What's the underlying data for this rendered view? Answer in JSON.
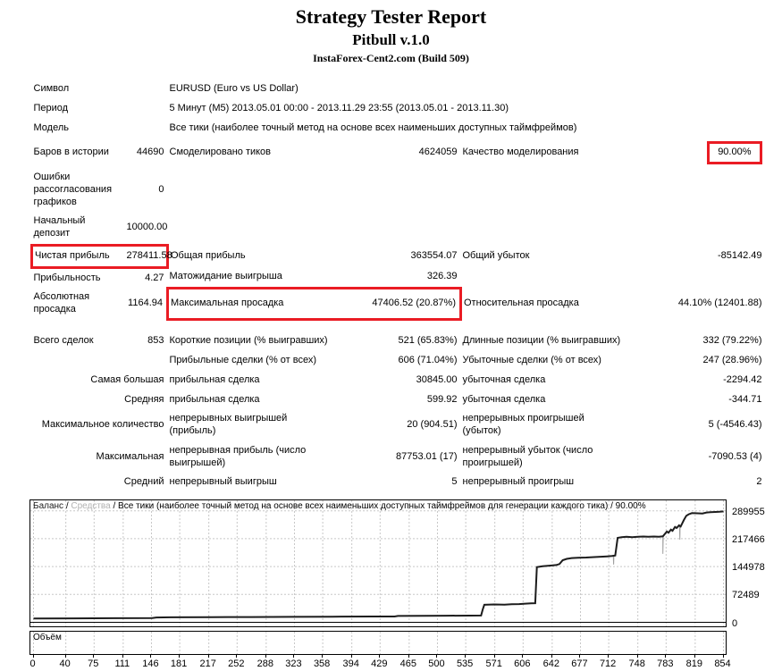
{
  "header": {
    "title": "Strategy Tester Report",
    "subtitle": "Pitbull v.1.0",
    "build": "InstaForex-Cent2.com (Build 509)"
  },
  "colors": {
    "red": "#ea1c24",
    "balance_line": "#1c1c1c",
    "equity_line": "#a0a0a0",
    "grid": "#c8c8c8",
    "legend_equity": "#b2b2b2"
  },
  "report": {
    "rows": [
      {
        "cells": [
          {
            "t": "Символ"
          },
          {
            "t": ""
          },
          {
            "t": "EURUSD (Euro vs US Dollar)",
            "s": 4
          }
        ]
      },
      {
        "cells": [
          {
            "t": "Период"
          },
          {
            "t": ""
          },
          {
            "t": "5 Минут (M5) 2013.05.01 00:00 - 2013.11.29 23:55 (2013.05.01 - 2013.11.30)",
            "s": 4
          }
        ]
      },
      {
        "cells": [
          {
            "t": "Модель"
          },
          {
            "t": ""
          },
          {
            "t": "Все тики (наиболее точный метод на основе всех наименьших доступных таймфреймов)",
            "s": 4
          }
        ]
      },
      {
        "cells": [
          {
            "t": "Баров в истории"
          },
          {
            "t": "44690",
            "a": "r"
          },
          {
            "t": "Смоделировано тиков"
          },
          {
            "t": "4624059",
            "a": "r"
          },
          {
            "t": "Качество моделирования"
          },
          {
            "t": "90.00%",
            "a": "r",
            "b": "f"
          }
        ]
      },
      {
        "cells": [
          {
            "t": "Ошибки рассогласования графиков"
          },
          {
            "t": "0",
            "a": "r"
          },
          {
            "t": "",
            "s": 4
          }
        ]
      },
      {
        "cells": [
          {
            "t": "Начальный депозит"
          },
          {
            "t": "10000.00",
            "a": "r"
          },
          {
            "t": "",
            "s": 4
          }
        ]
      },
      {
        "cells": [
          {
            "t": "Чистая прибыль",
            "b": "l"
          },
          {
            "t": "278411.58",
            "a": "r",
            "b": "r"
          },
          {
            "t": "Общая прибыль"
          },
          {
            "t": "363554.07",
            "a": "r"
          },
          {
            "t": "Общий убыток"
          },
          {
            "t": "-85142.49",
            "a": "r"
          }
        ]
      },
      {
        "cells": [
          {
            "t": "Прибыльность"
          },
          {
            "t": "4.27",
            "a": "r"
          },
          {
            "t": "Матожидание выигрыша"
          },
          {
            "t": "326.39",
            "a": "r"
          },
          {
            "t": ""
          },
          {
            "t": ""
          }
        ]
      },
      {
        "cells": [
          {
            "t": "Абсолютная просадка"
          },
          {
            "t": "1164.94",
            "a": "r"
          },
          {
            "t": "Максимальная просадка",
            "b": "l"
          },
          {
            "t": "47406.52 (20.87%)",
            "a": "r",
            "b": "r"
          },
          {
            "t": "Относительная просадка"
          },
          {
            "t": "44.10% (12401.88)",
            "a": "r"
          }
        ]
      },
      {
        "gap": true,
        "cells": [
          {
            "t": "Всего сделок"
          },
          {
            "t": "853",
            "a": "r"
          },
          {
            "t": "Короткие позиции (% выигравших)"
          },
          {
            "t": "521 (65.83%)",
            "a": "r"
          },
          {
            "t": "Длинные позиции (% выигравших)"
          },
          {
            "t": "332 (79.22%)",
            "a": "r"
          }
        ]
      },
      {
        "cells": [
          {
            "t": ""
          },
          {
            "t": ""
          },
          {
            "t": "Прибыльные сделки (% от всех)"
          },
          {
            "t": "606 (71.04%)",
            "a": "r"
          },
          {
            "t": "Убыточные сделки (% от всех)"
          },
          {
            "t": "247 (28.96%)",
            "a": "r"
          }
        ]
      },
      {
        "cells": [
          {
            "t": "Самая большая",
            "s": 2,
            "a": "r"
          },
          {
            "t": "прибыльная сделка"
          },
          {
            "t": "30845.00",
            "a": "r"
          },
          {
            "t": "убыточная сделка"
          },
          {
            "t": "-2294.42",
            "a": "r"
          }
        ]
      },
      {
        "cells": [
          {
            "t": "Средняя",
            "s": 2,
            "a": "r"
          },
          {
            "t": "прибыльная сделка"
          },
          {
            "t": "599.92",
            "a": "r"
          },
          {
            "t": "убыточная сделка"
          },
          {
            "t": "-344.71",
            "a": "r"
          }
        ]
      },
      {
        "cells": [
          {
            "t": "Максимальное количество",
            "s": 2,
            "a": "r"
          },
          {
            "t": "непрерывных выигрышей (прибыль)"
          },
          {
            "t": "20 (904.51)",
            "a": "r"
          },
          {
            "t": "непрерывных проигрышей (убыток)"
          },
          {
            "t": "5 (-4546.43)",
            "a": "r"
          }
        ]
      },
      {
        "cells": [
          {
            "t": "Максимальная",
            "s": 2,
            "a": "r"
          },
          {
            "t": "непрерывная прибыль (число выигрышей)"
          },
          {
            "t": "87753.01 (17)",
            "a": "r"
          },
          {
            "t": "непрерывный убыток (число проигрышей)"
          },
          {
            "t": "-7090.53 (4)",
            "a": "r"
          }
        ]
      },
      {
        "cells": [
          {
            "t": "Средний",
            "s": 2,
            "a": "r"
          },
          {
            "t": "непрерывный выигрыш"
          },
          {
            "t": "5",
            "a": "r"
          },
          {
            "t": "непрерывный проигрыш"
          },
          {
            "t": "2",
            "a": "r"
          }
        ]
      }
    ]
  },
  "chart_data": {
    "type": "line",
    "legend": [
      {
        "text": "Баланс",
        "color": "#1c1c1c"
      },
      {
        "text": "Средства",
        "color": "#b2b2b2"
      },
      {
        "text": "Все тики (наиболее точный метод на основе всех наименьших доступных таймфреймов для генерации каждого тика)",
        "color": "#000000"
      },
      {
        "text": "90.00%",
        "color": "#000000"
      }
    ],
    "volume_label": "Объём",
    "y_ticks": [
      289955,
      217466,
      144978,
      72489,
      0
    ],
    "x_ticks": [
      0,
      40,
      75,
      111,
      146,
      181,
      217,
      252,
      288,
      323,
      358,
      394,
      429,
      465,
      500,
      535,
      571,
      606,
      642,
      677,
      712,
      748,
      783,
      819,
      854
    ],
    "x_range": [
      0,
      854
    ],
    "y_range": [
      0,
      313000
    ],
    "grid": true,
    "legend_position": "top-left",
    "series": [
      {
        "name": "Баланс",
        "points": [
          [
            0,
            10000
          ],
          [
            50,
            10250
          ],
          [
            100,
            10600
          ],
          [
            147,
            10900
          ],
          [
            152,
            12600
          ],
          [
            170,
            13000
          ],
          [
            220,
            13400
          ],
          [
            270,
            13800
          ],
          [
            320,
            14200
          ],
          [
            370,
            14600
          ],
          [
            420,
            15000
          ],
          [
            447,
            15200
          ],
          [
            451,
            16500
          ],
          [
            480,
            16800
          ],
          [
            510,
            17100
          ],
          [
            540,
            17400
          ],
          [
            554,
            17600
          ],
          [
            556,
            33000
          ],
          [
            558,
            45500
          ],
          [
            570,
            46500
          ],
          [
            583,
            46000
          ],
          [
            592,
            47000
          ],
          [
            601,
            47500
          ],
          [
            609,
            48600
          ],
          [
            616,
            49200
          ],
          [
            621,
            49600
          ],
          [
            623,
            143500
          ],
          [
            630,
            146000
          ],
          [
            640,
            147500
          ],
          [
            647,
            149000
          ],
          [
            651,
            151500
          ],
          [
            655,
            161500
          ],
          [
            660,
            165000
          ],
          [
            666,
            167000
          ],
          [
            674,
            168000
          ],
          [
            684,
            168500
          ],
          [
            694,
            169500
          ],
          [
            702,
            170500
          ],
          [
            710,
            171500
          ],
          [
            716,
            172500
          ],
          [
            720,
            173500
          ],
          [
            723,
            219500
          ],
          [
            728,
            221500
          ],
          [
            734,
            222500
          ],
          [
            741,
            221500
          ],
          [
            748,
            222500
          ],
          [
            755,
            223000
          ],
          [
            761,
            222500
          ],
          [
            768,
            223000
          ],
          [
            774,
            222500
          ],
          [
            779,
            223500
          ],
          [
            784,
            236000
          ],
          [
            786,
            233000
          ],
          [
            789,
            241000
          ],
          [
            791,
            238000
          ],
          [
            794,
            248000
          ],
          [
            796,
            245000
          ],
          [
            799,
            252000
          ],
          [
            801,
            249000
          ],
          [
            805,
            266000
          ],
          [
            808,
            277000
          ],
          [
            811,
            281000
          ],
          [
            815,
            284000
          ],
          [
            822,
            283500
          ],
          [
            828,
            283000
          ],
          [
            833,
            285500
          ],
          [
            838,
            286500
          ],
          [
            844,
            287000
          ],
          [
            849,
            287500
          ],
          [
            854,
            288412
          ]
        ]
      },
      {
        "name": "Средства",
        "dips": [
          {
            "bar": 718,
            "value": 150000
          },
          {
            "bar": 779,
            "value": 178000
          },
          {
            "bar": 800,
            "value": 215000
          }
        ]
      }
    ]
  }
}
